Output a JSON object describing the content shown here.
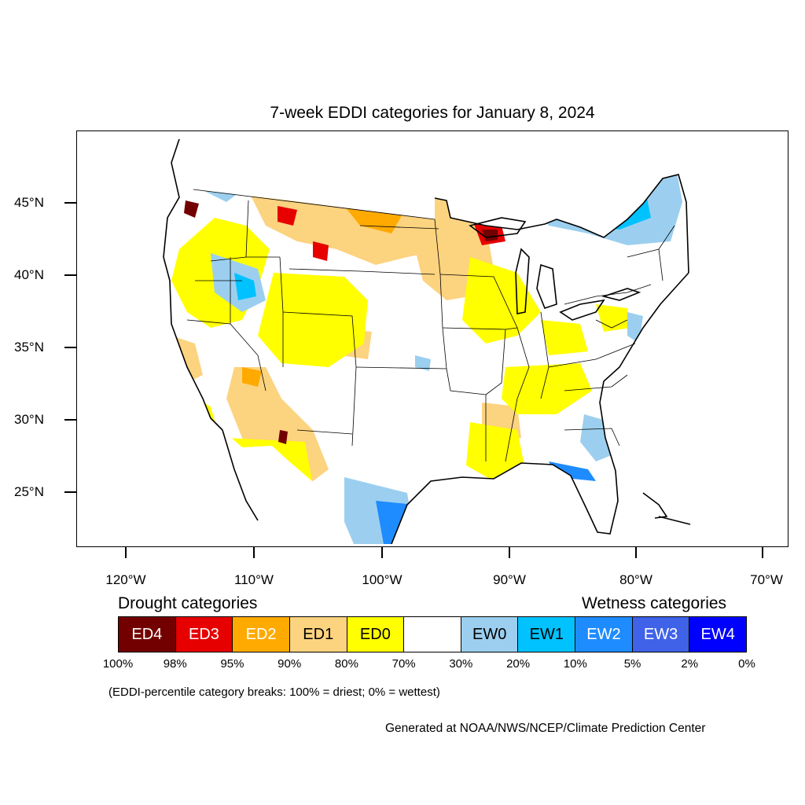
{
  "title": "7-week EDDI categories for January 8, 2024",
  "axes": {
    "lat_ticks": [
      "45°N",
      "40°N",
      "35°N",
      "30°N",
      "25°N"
    ],
    "lon_ticks": [
      "120°W",
      "110°W",
      "100°W",
      "90°W",
      "80°W",
      "70°W"
    ]
  },
  "legend": {
    "drought_header": "Drought categories",
    "wetness_header": "Wetness categories",
    "categories": [
      {
        "label": "ED4",
        "color": "#730000",
        "text_color": "#ffffff"
      },
      {
        "label": "ED3",
        "color": "#e60000",
        "text_color": "#ffffff"
      },
      {
        "label": "ED2",
        "color": "#ffaa00",
        "text_color": "#ffffff"
      },
      {
        "label": "ED1",
        "color": "#fcd37f",
        "text_color": "#000000"
      },
      {
        "label": "ED0",
        "color": "#ffff00",
        "text_color": "#000000"
      },
      {
        "label": "",
        "color": "#ffffff",
        "text_color": "#000000"
      },
      {
        "label": "EW0",
        "color": "#9ccfef",
        "text_color": "#000000"
      },
      {
        "label": "EW1",
        "color": "#00c2ff",
        "text_color": "#000000"
      },
      {
        "label": "EW2",
        "color": "#1e8cff",
        "text_color": "#ffffff"
      },
      {
        "label": "EW3",
        "color": "#3f62e8",
        "text_color": "#ffffff"
      },
      {
        "label": "EW4",
        "color": "#0000ff",
        "text_color": "#ffffff"
      }
    ],
    "breaks": [
      "100%",
      "98%",
      "95%",
      "90%",
      "80%",
      "70%",
      "30%",
      "20%",
      "10%",
      "5%",
      "2%",
      "0%"
    ]
  },
  "note": "(EDDI-percentile category breaks: 100% = driest; 0% = wettest)",
  "credit": "Generated at NOAA/NWS/NCEP/Climate Prediction Center"
}
